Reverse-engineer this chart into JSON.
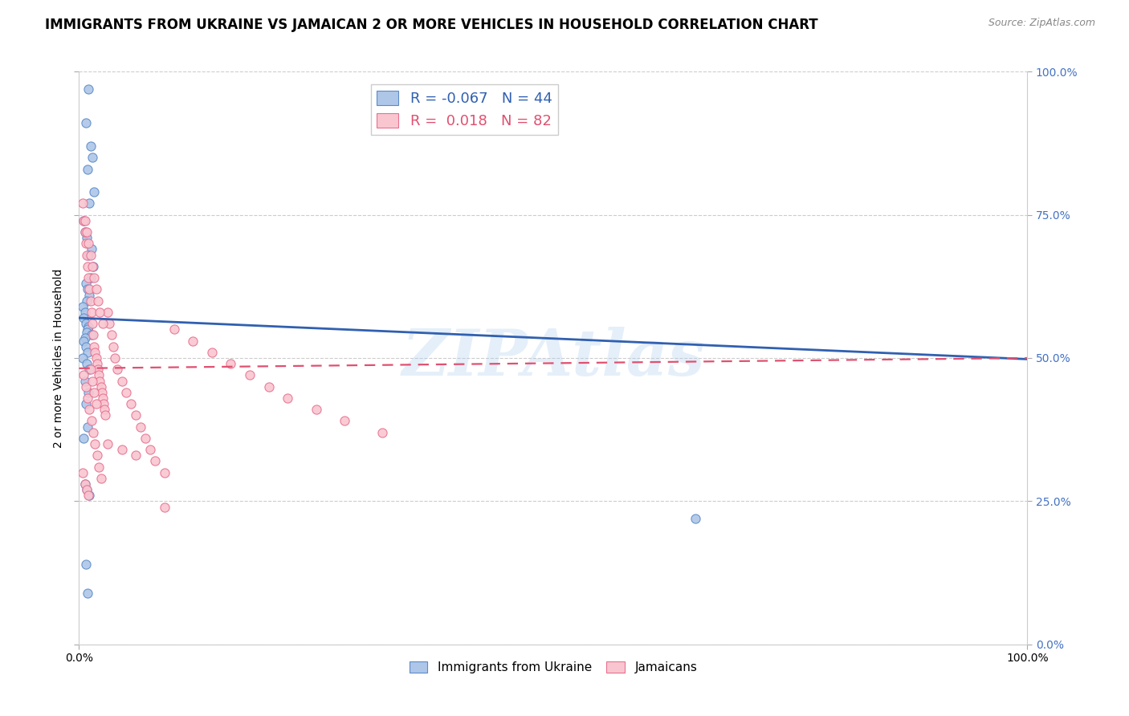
{
  "title": "IMMIGRANTS FROM UKRAINE VS JAMAICAN 2 OR MORE VEHICLES IN HOUSEHOLD CORRELATION CHART",
  "source": "Source: ZipAtlas.com",
  "ylabel": "2 or more Vehicles in Household",
  "ytick_vals": [
    0.0,
    0.25,
    0.5,
    0.75,
    1.0
  ],
  "ytick_labels": [
    "0.0%",
    "25.0%",
    "50.0%",
    "75.0%",
    "100.0%"
  ],
  "watermark": "ZIPAtlas",
  "legend_R1": "-0.067",
  "legend_N1": "44",
  "legend_R2": "0.018",
  "legend_N2": "82",
  "blue_fill": "#aec6e8",
  "pink_fill": "#f9c6d0",
  "blue_edge": "#5b8cc8",
  "pink_edge": "#e87090",
  "blue_line": "#3060b0",
  "pink_line": "#e05070",
  "ukraine_x": [
    0.01,
    0.007,
    0.012,
    0.014,
    0.009,
    0.016,
    0.011,
    0.005,
    0.006,
    0.008,
    0.013,
    0.01,
    0.015,
    0.012,
    0.007,
    0.009,
    0.011,
    0.008,
    0.004,
    0.006,
    0.005,
    0.007,
    0.01,
    0.009,
    0.008,
    0.013,
    0.006,
    0.005,
    0.007,
    0.009,
    0.004,
    0.008,
    0.011,
    0.006,
    0.01,
    0.007,
    0.009,
    0.005,
    0.006,
    0.008,
    0.011,
    0.007,
    0.65,
    0.009
  ],
  "ukraine_y": [
    0.97,
    0.91,
    0.87,
    0.85,
    0.83,
    0.79,
    0.77,
    0.74,
    0.72,
    0.71,
    0.69,
    0.68,
    0.66,
    0.64,
    0.63,
    0.62,
    0.61,
    0.6,
    0.59,
    0.58,
    0.57,
    0.56,
    0.555,
    0.55,
    0.545,
    0.54,
    0.535,
    0.53,
    0.52,
    0.51,
    0.5,
    0.49,
    0.48,
    0.46,
    0.44,
    0.42,
    0.38,
    0.36,
    0.28,
    0.27,
    0.26,
    0.14,
    0.22,
    0.09
  ],
  "jamaican_x": [
    0.004,
    0.005,
    0.006,
    0.007,
    0.008,
    0.009,
    0.01,
    0.011,
    0.012,
    0.013,
    0.014,
    0.015,
    0.016,
    0.017,
    0.018,
    0.019,
    0.02,
    0.021,
    0.022,
    0.023,
    0.024,
    0.025,
    0.026,
    0.027,
    0.028,
    0.03,
    0.032,
    0.034,
    0.036,
    0.038,
    0.04,
    0.045,
    0.05,
    0.055,
    0.06,
    0.065,
    0.07,
    0.075,
    0.08,
    0.09,
    0.1,
    0.12,
    0.14,
    0.16,
    0.18,
    0.2,
    0.22,
    0.25,
    0.28,
    0.32,
    0.006,
    0.008,
    0.01,
    0.012,
    0.014,
    0.016,
    0.018,
    0.02,
    0.022,
    0.025,
    0.005,
    0.007,
    0.009,
    0.011,
    0.013,
    0.015,
    0.017,
    0.019,
    0.021,
    0.023,
    0.004,
    0.006,
    0.008,
    0.01,
    0.012,
    0.014,
    0.016,
    0.018,
    0.03,
    0.045,
    0.06,
    0.09
  ],
  "jamaican_y": [
    0.77,
    0.74,
    0.72,
    0.7,
    0.68,
    0.66,
    0.64,
    0.62,
    0.6,
    0.58,
    0.56,
    0.54,
    0.52,
    0.51,
    0.5,
    0.49,
    0.48,
    0.47,
    0.46,
    0.45,
    0.44,
    0.43,
    0.42,
    0.41,
    0.4,
    0.58,
    0.56,
    0.54,
    0.52,
    0.5,
    0.48,
    0.46,
    0.44,
    0.42,
    0.4,
    0.38,
    0.36,
    0.34,
    0.32,
    0.3,
    0.55,
    0.53,
    0.51,
    0.49,
    0.47,
    0.45,
    0.43,
    0.41,
    0.39,
    0.37,
    0.74,
    0.72,
    0.7,
    0.68,
    0.66,
    0.64,
    0.62,
    0.6,
    0.58,
    0.56,
    0.47,
    0.45,
    0.43,
    0.41,
    0.39,
    0.37,
    0.35,
    0.33,
    0.31,
    0.29,
    0.3,
    0.28,
    0.27,
    0.26,
    0.48,
    0.46,
    0.44,
    0.42,
    0.35,
    0.34,
    0.33,
    0.24
  ],
  "background_color": "#ffffff",
  "grid_color": "#cccccc",
  "title_fontsize": 12,
  "source_fontsize": 9,
  "tick_fontsize": 10,
  "axis_label_fontsize": 10
}
